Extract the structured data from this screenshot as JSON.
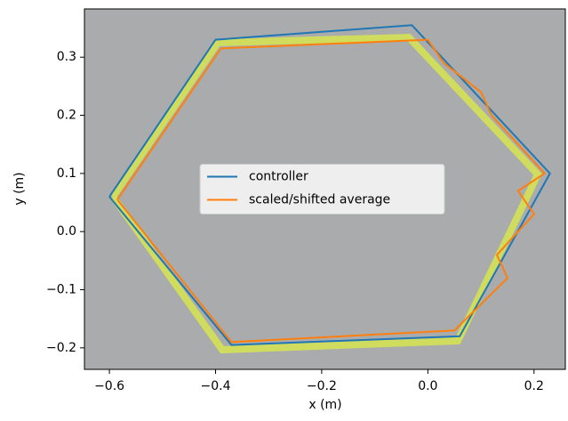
{
  "chart_data": {
    "type": "line",
    "xlabel": "x (m)",
    "ylabel": "y (m)",
    "xlim": [
      -0.647,
      0.259
    ],
    "ylim": [
      -0.237,
      0.383
    ],
    "xticks": [
      {
        "value": -0.6,
        "label": "−0.6"
      },
      {
        "value": -0.4,
        "label": "−0.4"
      },
      {
        "value": -0.2,
        "label": "−0.2"
      },
      {
        "value": 0,
        "label": "0.0"
      },
      0.2
    ],
    "yticks": [
      {
        "value": -0.2,
        "label": "−0.2"
      },
      {
        "value": -0.1,
        "label": "−0.1"
      },
      {
        "value": 0,
        "label": "0.0"
      },
      0.1,
      0.2,
      0.3
    ],
    "legend": "center",
    "series": [
      {
        "name": "controller",
        "color": "#1f77b4",
        "x": [
          -0.6,
          -0.4,
          -0.03,
          0.23,
          0.06,
          -0.37,
          -0.6
        ],
        "values": [
          0.06,
          0.33,
          0.355,
          0.1,
          -0.18,
          -0.195,
          0.06
        ]
      },
      {
        "name": "scaled/shifted average",
        "color": "#ff7f0e",
        "x": [
          -0.585,
          -0.39,
          0.0,
          0.03,
          0.1,
          0.12,
          0.22,
          0.17,
          0.2,
          0.13,
          0.15,
          0.05,
          -0.37,
          -0.585
        ],
        "values": [
          0.055,
          0.315,
          0.33,
          0.29,
          0.24,
          0.2,
          0.1,
          0.07,
          0.03,
          -0.04,
          -0.08,
          -0.17,
          -0.19,
          0.055
        ]
      }
    ]
  }
}
